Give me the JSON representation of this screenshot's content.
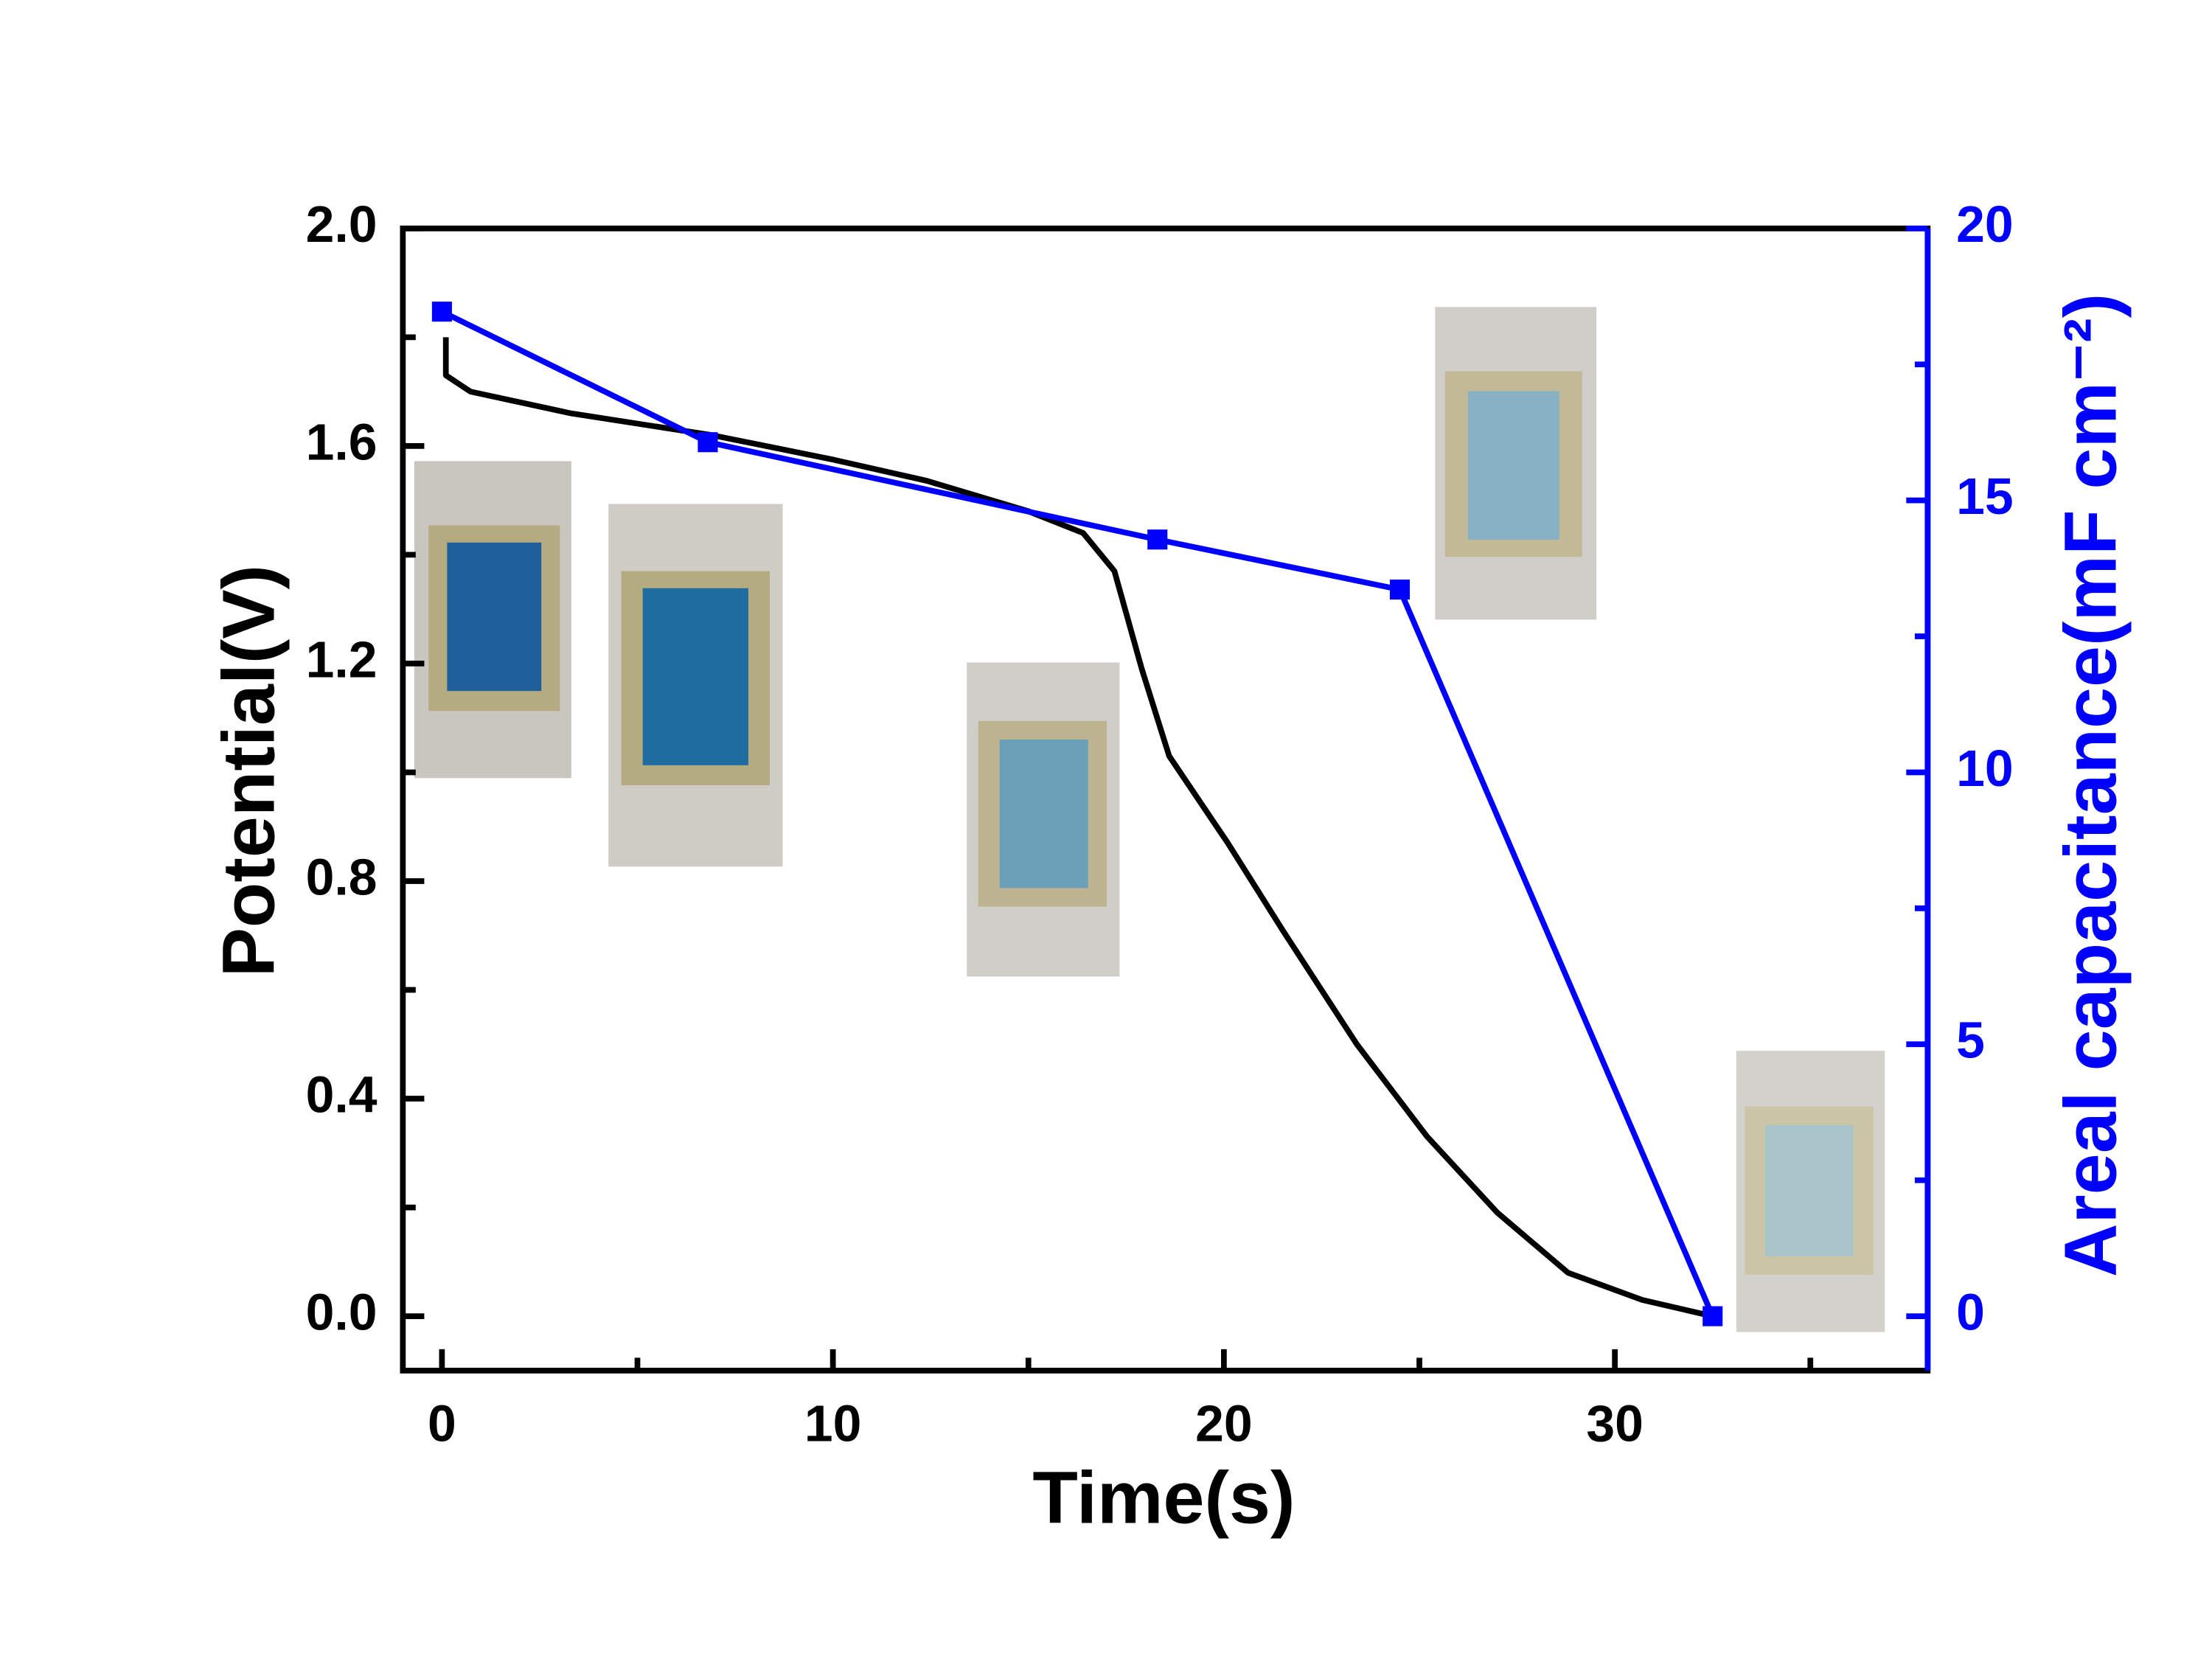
{
  "chart_data": {
    "type": "line",
    "xlabel": "Time(s)",
    "ylabel": "Potential(V)",
    "y2label": "Areal capacitance(mF cm⁻²)",
    "xlim": [
      -1,
      38
    ],
    "xticks": [
      0,
      10,
      20,
      30
    ],
    "xminorticks": [
      5,
      15,
      25,
      35
    ],
    "ylim": [
      -0.1,
      2.0
    ],
    "yticks": [
      {
        "value": 0,
        "label": "0.0"
      },
      {
        "value": 0.4,
        "label": "0.4"
      },
      {
        "value": 0.8,
        "label": "0.8"
      },
      {
        "value": 1.2,
        "label": "1.2"
      },
      {
        "value": 1.6,
        "label": "1.6"
      },
      {
        "value": 2.0,
        "label": "2.0"
      }
    ],
    "yminorticks": [
      0.2,
      0.6,
      1.0,
      1.4,
      1.8
    ],
    "y2lim": [
      -1,
      20
    ],
    "y2ticks": [
      0,
      5,
      10,
      15,
      20
    ],
    "y2minorticks": [
      2.5,
      7.5,
      12.5,
      17.5
    ],
    "series": [
      {
        "color": "#000000",
        "markers": false,
        "x": [
          0.1,
          0.1,
          0.73,
          3.3,
          6.9,
          10,
          12.4,
          15,
          16.4,
          17.2,
          17.9,
          18.6,
          20.1,
          21.5,
          23.4,
          25.2,
          27.0,
          28.8,
          30.7,
          32.5
        ],
        "values": [
          1.8,
          1.73,
          1.7,
          1.66,
          1.62,
          1.575,
          1.536,
          1.48,
          1.44,
          1.37,
          1.19,
          1.03,
          0.87,
          0.71,
          0.5,
          0.33,
          0.19,
          0.08,
          0.03,
          0.0
        ]
      },
      {
        "color": "#0000ff",
        "markers": true,
        "axis": "y2",
        "x": [
          0,
          6.8,
          18.3,
          24.5,
          32.5
        ],
        "values": [
          18.47,
          16.07,
          14.28,
          13.36,
          0
        ]
      }
    ]
  }
}
